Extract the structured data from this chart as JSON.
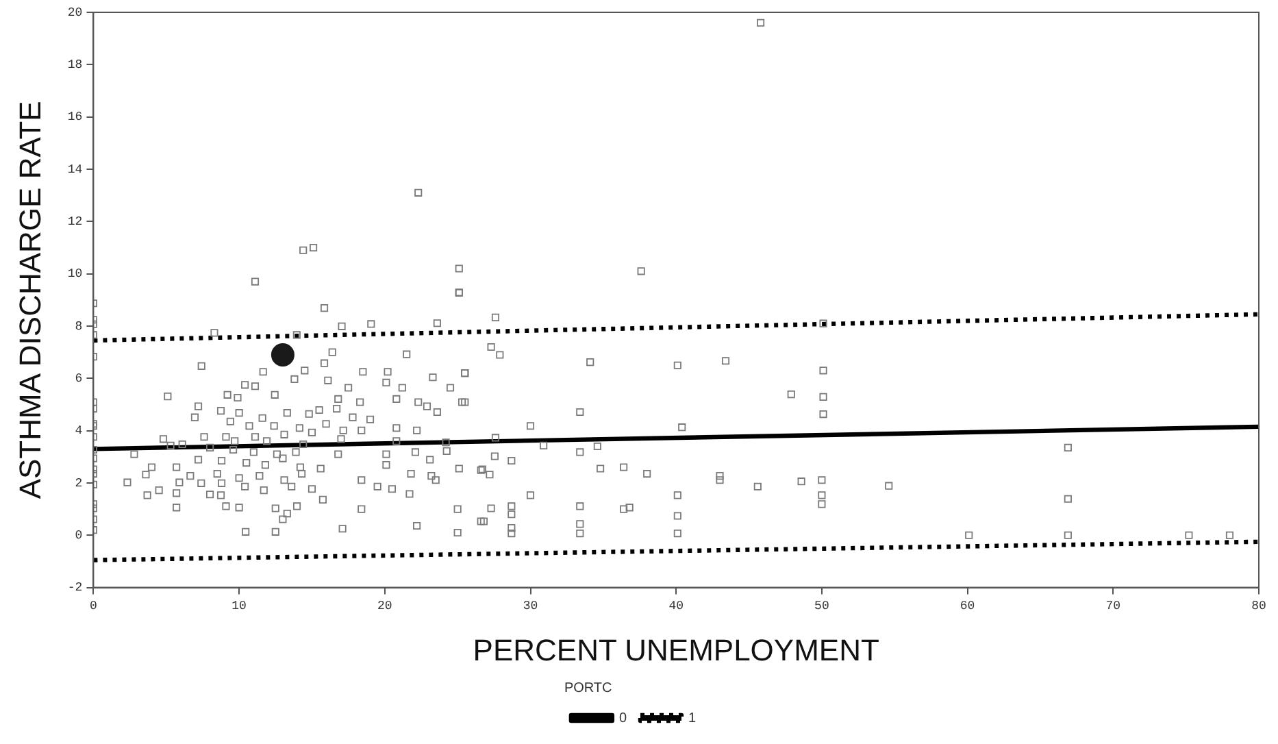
{
  "chart_data": {
    "type": "scatter",
    "xlabel": "PERCENT UNEMPLOYMENT",
    "ylabel": "ASTHMA DISCHARGE RATE",
    "legend_title": "PORTC",
    "legend": "bottom",
    "grid": false,
    "xlim": [
      0,
      80
    ],
    "xticks": [
      0,
      10,
      20,
      30,
      40,
      50,
      60,
      70,
      80
    ],
    "ylim": [
      -2,
      20
    ],
    "yticks": [
      -2,
      0,
      2,
      4,
      6,
      8,
      10,
      12,
      14,
      16,
      18,
      20
    ],
    "series": [
      {
        "type": "scatter",
        "color": "#7a7a7a",
        "marker": "square",
        "x": [
          0,
          0,
          0,
          0,
          0,
          0,
          0,
          0,
          0,
          0,
          0,
          0,
          0,
          0,
          0,
          0,
          0,
          0,
          0,
          11.1,
          14.4,
          15.1,
          22.3,
          25.1,
          25.1,
          45.8,
          37.6,
          15.85,
          25.1,
          17.05,
          19.06,
          23.6,
          8.3,
          13.96,
          7.42,
          16.4,
          15.85,
          21.5,
          11.65,
          14.5,
          16.1,
          18.5,
          20.2,
          23.3,
          25.5,
          10.4,
          11.1,
          13.8,
          17.5,
          20.1,
          21.2,
          24.5,
          5.1,
          9.2,
          9.9,
          12.45,
          16.8,
          18.3,
          20.8,
          22.3,
          25.3,
          7.2,
          8.75,
          10,
          11.6,
          13.3,
          14.8,
          15.5,
          16.7,
          17.8,
          19,
          22.9,
          23.6,
          6.96,
          9.4,
          10.7,
          12.4,
          14.15,
          15.97,
          17.15,
          18.4,
          20.8,
          22.2,
          9.1,
          11.1,
          13.1,
          15,
          4.8,
          7.6,
          9.7,
          11.9,
          14.4,
          17,
          20.8,
          24.2,
          5.3,
          6.1,
          2.8,
          8,
          9.6,
          11,
          12.6,
          13,
          13.9,
          16.8,
          20.1,
          22.1,
          24.25,
          7.2,
          8.8,
          10.5,
          11.8,
          14.2,
          15.6,
          20.1,
          23.1,
          25.1,
          26.6,
          4,
          5.7,
          3.6,
          6.65,
          8.5,
          10,
          11.4,
          13.1,
          14.3,
          21.8,
          23.2,
          2.33,
          4.5,
          5.9,
          7.4,
          8.8,
          10.4,
          11.7,
          13.6,
          15,
          18.4,
          19.5,
          20.5,
          21.7,
          23.5,
          3.7,
          5.7,
          8,
          8.75,
          15.75,
          5.7,
          9.1,
          10,
          12.5,
          13.3,
          13.97,
          18.4,
          25,
          13,
          10.45,
          12.5,
          17.1,
          22.2,
          25,
          26.6,
          27.6,
          27.3,
          27.9,
          25.5,
          34.1,
          40.1,
          43.4,
          50.1,
          50.1,
          25.5,
          47.9,
          50.1,
          50.1,
          33.4,
          30,
          40.4,
          27.6,
          30.9,
          34.6,
          33.4,
          27.55,
          28.7,
          26.7,
          27.2,
          34.8,
          36.4,
          38,
          43,
          43,
          45.6,
          48.6,
          50,
          50,
          50,
          30,
          40.1,
          27.3,
          28.7,
          28.7,
          33.4,
          36.4,
          36.8,
          26.8,
          28.7,
          28.7,
          33.4,
          33.4,
          40.1,
          40.1,
          54.6,
          66.9,
          66.9,
          60.1,
          66.9,
          75.2,
          78
        ],
        "values": [
          8.87,
          8.24,
          8.07,
          7.66,
          6.83,
          5.09,
          4.84,
          4.26,
          4.18,
          3.76,
          3.27,
          2.94,
          2.52,
          2.35,
          1.94,
          1.19,
          1.03,
          0.61,
          0.2,
          9.7,
          10.9,
          11,
          13.1,
          10.2,
          9.27,
          19.6,
          10.1,
          8.69,
          9.29,
          7.99,
          8.08,
          8.11,
          7.74,
          7.66,
          6.47,
          7,
          6.58,
          6.92,
          6.25,
          6.3,
          5.92,
          6.25,
          6.25,
          6.04,
          6.2,
          5.75,
          5.7,
          5.97,
          5.64,
          5.84,
          5.64,
          5.64,
          5.31,
          5.37,
          5.26,
          5.37,
          5.21,
          5.09,
          5.21,
          5.09,
          5.09,
          4.93,
          4.76,
          4.68,
          4.48,
          4.68,
          4.64,
          4.79,
          4.84,
          4.51,
          4.43,
          4.93,
          4.71,
          4.51,
          4.35,
          4.18,
          4.18,
          4.1,
          4.26,
          4.01,
          4.01,
          4.1,
          4.01,
          3.76,
          3.76,
          3.85,
          3.93,
          3.68,
          3.76,
          3.6,
          3.6,
          3.48,
          3.68,
          3.6,
          3.55,
          3.43,
          3.48,
          3.1,
          3.35,
          3.27,
          3.18,
          3.1,
          2.94,
          3.18,
          3.1,
          3.1,
          3.18,
          3.22,
          2.89,
          2.85,
          2.77,
          2.69,
          2.6,
          2.55,
          2.69,
          2.89,
          2.55,
          2.49,
          2.6,
          2.6,
          2.32,
          2.27,
          2.35,
          2.19,
          2.27,
          2.11,
          2.35,
          2.35,
          2.27,
          2.02,
          1.72,
          2.02,
          1.99,
          1.99,
          1.86,
          1.72,
          1.86,
          1.77,
          2.11,
          1.86,
          1.77,
          1.58,
          2.11,
          1.53,
          1.61,
          1.56,
          1.53,
          1.36,
          1.06,
          1.11,
          1.06,
          1.03,
          0.83,
          1.11,
          1,
          1,
          0.61,
          0.13,
          0.13,
          0.25,
          0.36,
          0.1,
          0.53,
          8.33,
          7.2,
          6.9,
          6.2,
          6.62,
          6.5,
          6.67,
          6.3,
          8.1,
          5.09,
          5.39,
          5.29,
          4.63,
          4.71,
          4.18,
          4.13,
          3.73,
          3.43,
          3.4,
          3.18,
          3.02,
          2.85,
          2.52,
          2.32,
          2.55,
          2.6,
          2.35,
          2.27,
          2.11,
          1.86,
          2.06,
          2.11,
          1.53,
          1.19,
          1.53,
          1.53,
          1.03,
          1.11,
          0.8,
          1.11,
          1,
          1.06,
          0.53,
          0.28,
          0.07,
          0.43,
          0.07,
          0.74,
          0.07,
          1.89,
          3.35,
          1.39,
          0,
          0,
          0,
          0
        ]
      },
      {
        "type": "scatter",
        "color": "#1a1a1a",
        "marker": "circle",
        "x": [
          13
        ],
        "values": [
          6.9
        ]
      },
      {
        "type": "line",
        "name": "0",
        "color": "#000000",
        "line_style": "solid",
        "x": [
          0,
          80
        ],
        "values": [
          3.3,
          4.15
        ]
      },
      {
        "type": "line",
        "name": "1",
        "color": "#000000",
        "line_style": "dotted",
        "x": [
          0,
          80
        ],
        "values": [
          7.45,
          8.45
        ]
      },
      {
        "type": "line",
        "color": "#000000",
        "line_style": "dotted",
        "x": [
          0,
          80
        ],
        "values": [
          -0.95,
          -0.25
        ]
      }
    ]
  }
}
